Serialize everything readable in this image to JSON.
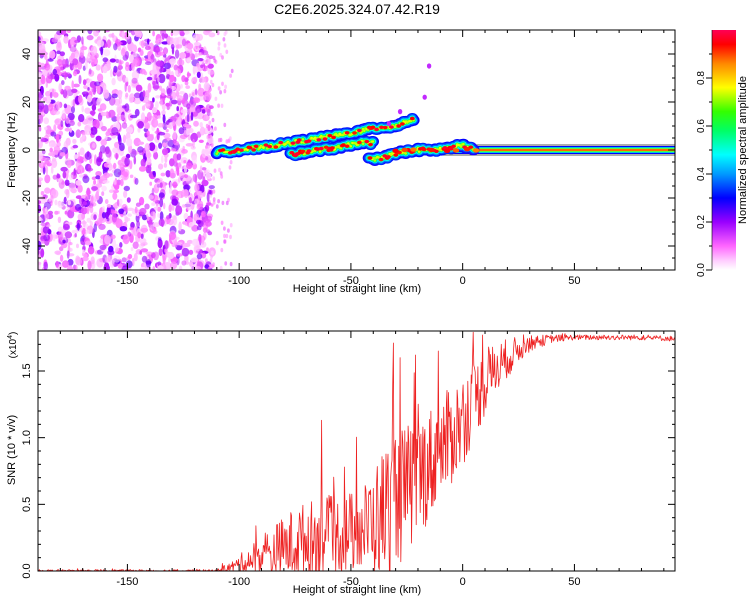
{
  "title": "C2E6.2025.324.07.42.R19",
  "chart_data": [
    {
      "type": "heatmap",
      "title": "C2E6.2025.324.07.42.R19",
      "xlabel": "Height of straight line (km)",
      "ylabel": "Frequency (Hz)",
      "xlim": [
        -190,
        95
      ],
      "ylim": [
        -50,
        50
      ],
      "xticks": [
        -150,
        -100,
        -50,
        0,
        50
      ],
      "xtick_labels": [
        "-150",
        "-100",
        "-50",
        "0",
        "50"
      ],
      "yticks": [
        -40,
        -20,
        0,
        20,
        40
      ],
      "ytick_labels": [
        "-40",
        "-20",
        "0",
        "20",
        "40"
      ],
      "noise_region_x": [
        -190,
        -112
      ],
      "ridge_x": [
        -112,
        95
      ],
      "ridge_center_hz": 0,
      "branches": [
        {
          "x": [
            -110,
            -90,
            -70,
            -50,
            -40,
            -30,
            -22
          ],
          "y": [
            -1,
            1,
            4,
            7,
            9,
            10,
            13
          ]
        },
        {
          "x": [
            -77,
            -65,
            -55,
            -47,
            -40
          ],
          "y": [
            -2,
            0,
            1,
            3,
            3
          ]
        },
        {
          "x": [
            -42,
            -35,
            -28,
            -20,
            -12,
            -5,
            0,
            5
          ],
          "y": [
            -4,
            -3,
            -1,
            0,
            0,
            1,
            2,
            0
          ]
        }
      ],
      "colorbar": {
        "label": "Normalized spectral amplitude",
        "ticks": [
          0.0,
          0.2,
          0.4,
          0.6,
          0.8
        ],
        "tick_labels": [
          "0.0",
          "0.2",
          "0.4",
          "0.6",
          "0.8"
        ],
        "range": [
          0,
          1
        ],
        "colors": [
          "#ffffff",
          "#ff88ff",
          "#9900ff",
          "#0000ff",
          "#00ffff",
          "#00ff00",
          "#ffff00",
          "#ff8800",
          "#ff0000",
          "#ff0066"
        ]
      }
    },
    {
      "type": "line",
      "xlabel": "Height of straight line (km)",
      "ylabel": "SNR (10 * v/v)",
      "scale_label": "(x10",
      "scale_exponent": "4",
      "xlim": [
        -190,
        95
      ],
      "ylim": [
        0,
        1.8
      ],
      "xticks": [
        -150,
        -100,
        -50,
        0,
        50
      ],
      "xtick_labels": [
        "-150",
        "-100",
        "-50",
        "0",
        "50"
      ],
      "yticks": [
        0.0,
        0.5,
        1.0,
        1.5
      ],
      "ytick_labels": [
        "0.0",
        "0.5",
        "1.0",
        "1.5"
      ],
      "color": "#ee2222",
      "envelope": {
        "x": [
          -190,
          -110,
          -102,
          -95,
          -85,
          -75,
          -65,
          -55,
          -45,
          -38,
          -32,
          -25,
          -18,
          -10,
          -5,
          0,
          5,
          10,
          15,
          20,
          25,
          30,
          40,
          50,
          60,
          70,
          80,
          95
        ],
        "base": [
          0.0,
          0.0,
          0.03,
          0.07,
          0.12,
          0.18,
          0.22,
          0.24,
          0.28,
          0.35,
          0.45,
          0.55,
          0.7,
          0.85,
          0.98,
          1.1,
          1.25,
          1.38,
          1.5,
          1.58,
          1.65,
          1.7,
          1.74,
          1.75,
          1.75,
          1.75,
          1.75,
          1.74
        ],
        "amp": [
          0.01,
          0.01,
          0.05,
          0.12,
          0.2,
          0.28,
          0.3,
          0.3,
          0.32,
          0.45,
          0.55,
          0.5,
          0.45,
          0.4,
          0.38,
          0.35,
          0.3,
          0.25,
          0.2,
          0.15,
          0.1,
          0.06,
          0.03,
          0.02,
          0.02,
          0.02,
          0.02,
          0.02
        ]
      },
      "spikes": [
        {
          "x": -63,
          "y": 1.13
        },
        {
          "x": -53,
          "y": 0.78
        },
        {
          "x": -31,
          "y": 1.71
        },
        {
          "x": -28,
          "y": 1.6
        },
        {
          "x": -21,
          "y": 1.62
        },
        {
          "x": -11,
          "y": 1.65
        },
        {
          "x": 9,
          "y": 1.77
        }
      ]
    }
  ]
}
